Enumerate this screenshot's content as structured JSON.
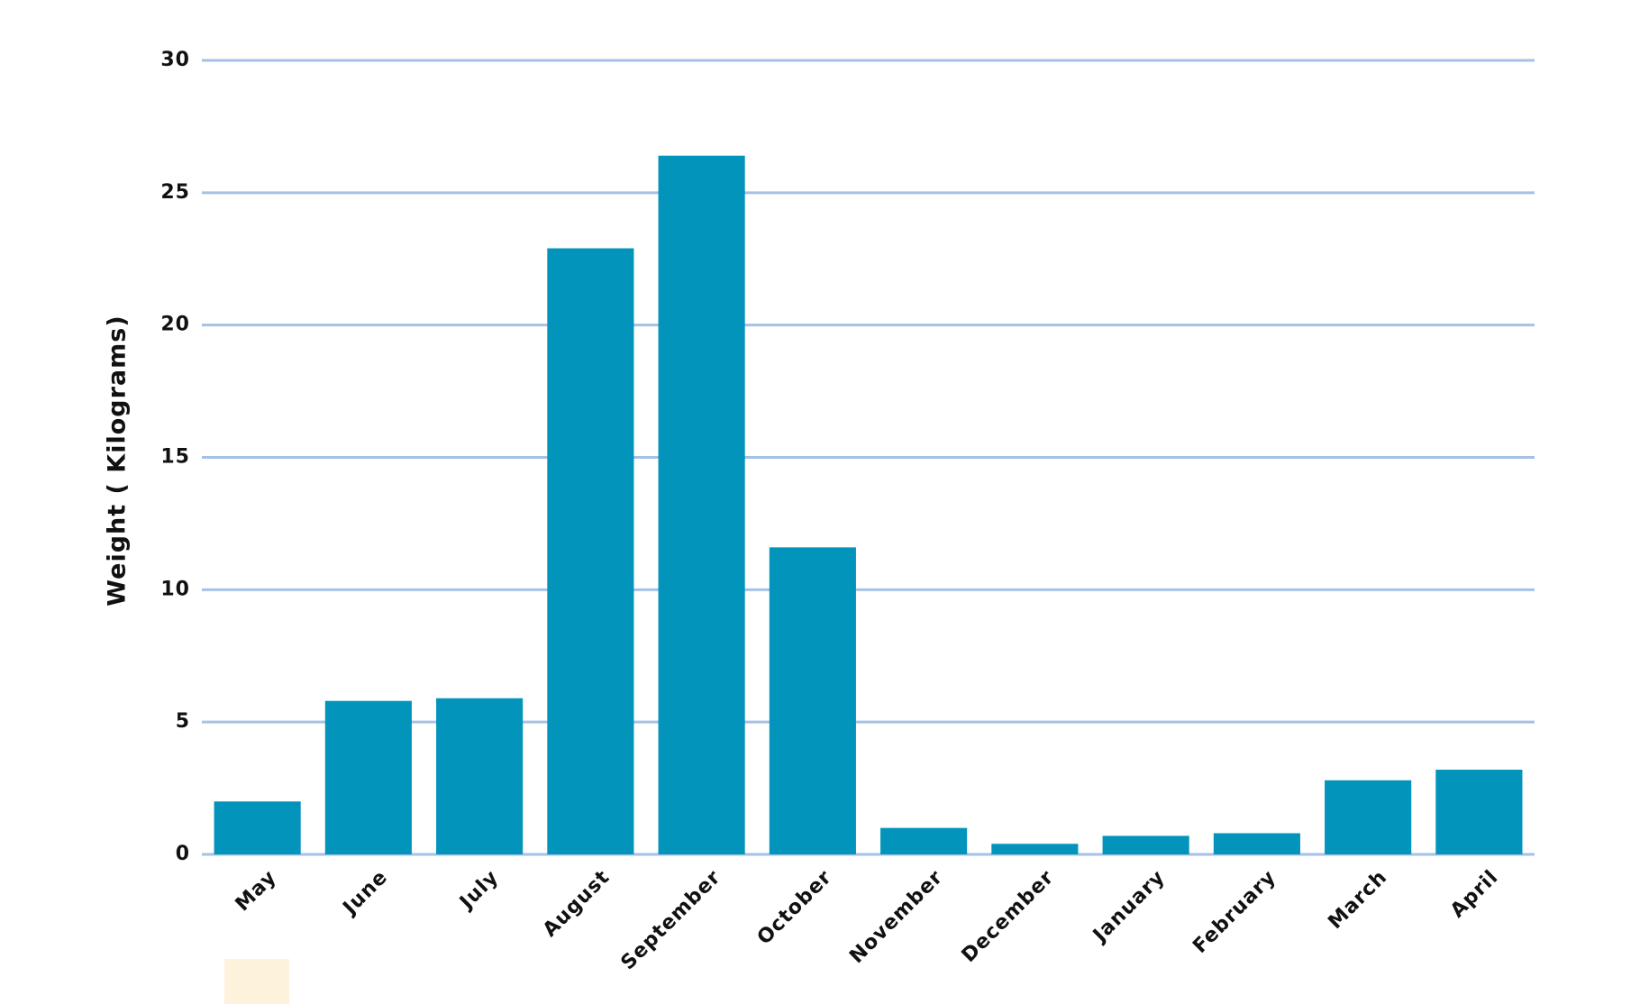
{
  "chart_data": {
    "type": "bar",
    "y_label": "Weight ( Kilograms)",
    "categories": [
      "May",
      "June",
      "July",
      "August",
      "September",
      "October",
      "November",
      "December",
      "January",
      "February",
      "March",
      "April"
    ],
    "values": [
      2.0,
      5.8,
      5.9,
      22.9,
      26.4,
      11.6,
      1.0,
      0.4,
      0.7,
      0.8,
      2.8,
      3.2
    ],
    "color": "#0394bc",
    "grid_color": "#a4c2e6",
    "ylim": [
      0,
      30
    ],
    "yticks": [
      0,
      5,
      10,
      15,
      20,
      25,
      30
    ],
    "grid": true
  }
}
